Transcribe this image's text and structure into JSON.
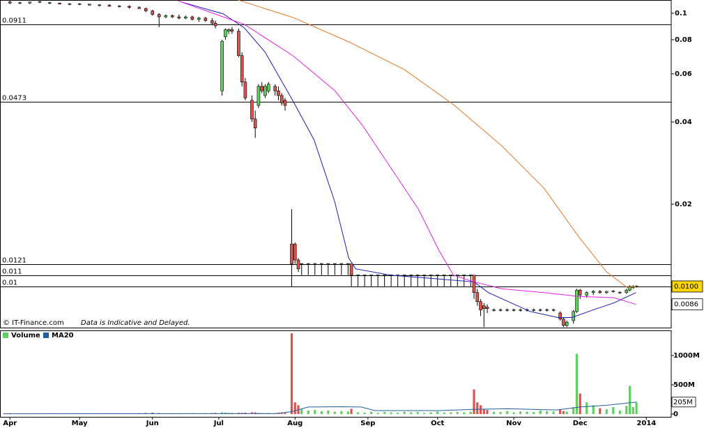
{
  "chart_data": {
    "type": "candlestick",
    "log_scale": true,
    "xlim": [
      -3,
      199.5
    ],
    "xticks": [
      {
        "value": 0,
        "label": "Apr"
      },
      {
        "value": 21,
        "label": "May"
      },
      {
        "value": 43,
        "label": "Jun"
      },
      {
        "value": 63,
        "label": "Jul"
      },
      {
        "value": 86,
        "label": "Aug"
      },
      {
        "value": 108,
        "label": "Sep"
      },
      {
        "value": 129,
        "label": "Oct"
      },
      {
        "value": 152,
        "label": "Nov"
      },
      {
        "value": 172,
        "label": "Dec"
      },
      {
        "value": 192,
        "label": "2014"
      }
    ],
    "ylim": [
      0.00707,
      0.1118
    ],
    "yticks": [
      0.1,
      0.08,
      0.06,
      0.04,
      0.02
    ],
    "levels": [
      0.0911,
      0.0473,
      0.0121,
      0.011,
      0.01
    ],
    "up_color": "#5fcf5f",
    "down_color": "#d9534f",
    "candles": {
      "x": [
        0,
        3,
        6,
        9,
        12,
        15,
        18,
        21,
        24,
        27,
        30,
        33,
        36,
        39,
        41,
        43,
        45,
        47,
        49,
        51,
        53,
        55,
        57,
        59,
        61,
        62,
        64,
        65,
        66,
        67,
        69,
        70,
        71,
        73,
        74,
        75,
        76,
        77,
        78,
        80,
        81,
        82,
        83,
        85,
        86,
        87,
        88,
        90,
        92,
        94,
        96,
        98,
        100,
        102,
        103,
        105,
        107,
        109,
        111,
        113,
        115,
        117,
        119,
        121,
        123,
        125,
        127,
        129,
        131,
        133,
        135,
        137,
        139,
        140,
        141,
        142,
        143,
        144,
        146,
        148,
        150,
        152,
        154,
        156,
        158,
        160,
        162,
        164,
        166,
        167,
        168,
        170,
        171,
        172,
        174,
        176,
        178,
        180,
        182,
        184,
        186,
        187,
        188,
        189
      ],
      "open": [
        0.11,
        0.109,
        0.109,
        0.11,
        0.109,
        0.109,
        0.108,
        0.108,
        0.108,
        0.107,
        0.107,
        0.106,
        0.106,
        0.105,
        0.104,
        0.102,
        0.099,
        0.097,
        0.098,
        0.097,
        0.096,
        0.097,
        0.095,
        0.096,
        0.094,
        0.092,
        0.052,
        0.082,
        0.086,
        0.087,
        0.086,
        0.07,
        0.056,
        0.048,
        0.041,
        0.046,
        0.054,
        0.05,
        0.052,
        0.054,
        0.052,
        0.05,
        0.048,
        0.0143,
        0.0143,
        0.0125,
        0.0121,
        0.0121,
        0.0121,
        0.0121,
        0.0121,
        0.0121,
        0.0121,
        0.0121,
        0.0121,
        0.011,
        0.011,
        0.011,
        0.011,
        0.011,
        0.011,
        0.011,
        0.011,
        0.011,
        0.011,
        0.011,
        0.011,
        0.011,
        0.011,
        0.011,
        0.011,
        0.011,
        0.011,
        0.011,
        0.0095,
        0.0088,
        0.0085,
        0.0084,
        0.0082,
        0.0082,
        0.0082,
        0.0082,
        0.0082,
        0.0082,
        0.0082,
        0.0082,
        0.0082,
        0.0082,
        0.008,
        0.0076,
        0.0072,
        0.0075,
        0.0081,
        0.0097,
        0.0093,
        0.0095,
        0.0096,
        0.0095,
        0.0096,
        0.0095,
        0.0095,
        0.0097,
        0.0099,
        0.01
      ],
      "high": [
        0.111,
        0.11,
        0.11,
        0.111,
        0.11,
        0.109,
        0.109,
        0.109,
        0.108,
        0.108,
        0.108,
        0.107,
        0.107,
        0.106,
        0.105,
        0.103,
        0.1,
        0.099,
        0.099,
        0.099,
        0.098,
        0.098,
        0.097,
        0.097,
        0.096,
        0.094,
        0.08,
        0.088,
        0.088,
        0.089,
        0.088,
        0.072,
        0.058,
        0.05,
        0.044,
        0.055,
        0.056,
        0.055,
        0.056,
        0.055,
        0.054,
        0.051,
        0.049,
        0.0192,
        0.0145,
        0.0127,
        0.0121,
        0.0121,
        0.0121,
        0.0121,
        0.0121,
        0.0121,
        0.0121,
        0.0121,
        0.0121,
        0.011,
        0.011,
        0.011,
        0.011,
        0.011,
        0.011,
        0.011,
        0.011,
        0.011,
        0.011,
        0.011,
        0.011,
        0.011,
        0.011,
        0.011,
        0.011,
        0.011,
        0.011,
        0.011,
        0.0098,
        0.009,
        0.0087,
        0.0086,
        0.0083,
        0.0083,
        0.0083,
        0.0083,
        0.0083,
        0.0083,
        0.0083,
        0.0083,
        0.0083,
        0.0083,
        0.0081,
        0.0077,
        0.0075,
        0.0082,
        0.0098,
        0.0098,
        0.0096,
        0.0097,
        0.0097,
        0.0096,
        0.0097,
        0.0096,
        0.0098,
        0.0101,
        0.0101,
        0.0101
      ],
      "low": [
        0.108,
        0.108,
        0.108,
        0.109,
        0.108,
        0.108,
        0.107,
        0.107,
        0.107,
        0.106,
        0.106,
        0.105,
        0.104,
        0.104,
        0.101,
        0.098,
        0.089,
        0.096,
        0.096,
        0.095,
        0.095,
        0.094,
        0.093,
        0.093,
        0.091,
        0.088,
        0.05,
        0.08,
        0.084,
        0.084,
        0.069,
        0.054,
        0.048,
        0.04,
        0.035,
        0.045,
        0.051,
        0.049,
        0.051,
        0.05,
        0.048,
        0.046,
        0.044,
        0.01,
        0.0121,
        0.0113,
        0.011,
        0.011,
        0.011,
        0.011,
        0.011,
        0.011,
        0.011,
        0.011,
        0.01,
        0.01,
        0.01,
        0.01,
        0.01,
        0.01,
        0.01,
        0.01,
        0.01,
        0.01,
        0.01,
        0.01,
        0.01,
        0.01,
        0.01,
        0.01,
        0.01,
        0.01,
        0.01,
        0.009,
        0.0085,
        0.0078,
        0.0071,
        0.008,
        0.0081,
        0.0081,
        0.0081,
        0.0081,
        0.0081,
        0.0081,
        0.0081,
        0.0081,
        0.0081,
        0.0081,
        0.0075,
        0.0071,
        0.0071,
        0.0073,
        0.008,
        0.009,
        0.0091,
        0.0093,
        0.0094,
        0.0094,
        0.0095,
        0.0094,
        0.0094,
        0.0096,
        0.0098,
        0.0099
      ],
      "close": [
        0.109,
        0.109,
        0.11,
        0.11,
        0.109,
        0.108,
        0.108,
        0.108,
        0.107,
        0.107,
        0.106,
        0.106,
        0.105,
        0.104,
        0.102,
        0.099,
        0.097,
        0.098,
        0.097,
        0.096,
        0.097,
        0.095,
        0.096,
        0.094,
        0.092,
        0.09,
        0.079,
        0.087,
        0.087,
        0.086,
        0.07,
        0.056,
        0.049,
        0.041,
        0.038,
        0.054,
        0.052,
        0.054,
        0.055,
        0.052,
        0.05,
        0.047,
        0.046,
        0.0121,
        0.0125,
        0.0116,
        0.0121,
        0.0121,
        0.0121,
        0.0121,
        0.0121,
        0.0121,
        0.0121,
        0.0121,
        0.011,
        0.011,
        0.011,
        0.011,
        0.011,
        0.011,
        0.011,
        0.011,
        0.011,
        0.011,
        0.011,
        0.011,
        0.011,
        0.011,
        0.011,
        0.011,
        0.011,
        0.011,
        0.011,
        0.0095,
        0.0088,
        0.0082,
        0.0083,
        0.0083,
        0.0082,
        0.0082,
        0.0082,
        0.0082,
        0.0082,
        0.0082,
        0.0082,
        0.0082,
        0.0082,
        0.0082,
        0.0076,
        0.0072,
        0.0074,
        0.0081,
        0.0097,
        0.0093,
        0.0095,
        0.0096,
        0.0095,
        0.0096,
        0.0096,
        0.0095,
        0.0097,
        0.01,
        0.01,
        0.01
      ],
      "volume": [
        15,
        10,
        8,
        12,
        6,
        5,
        10,
        8,
        6,
        10,
        7,
        9,
        12,
        15,
        20,
        25,
        18,
        10,
        12,
        9,
        11,
        14,
        10,
        13,
        16,
        20,
        30,
        25,
        20,
        18,
        22,
        20,
        25,
        30,
        28,
        20,
        15,
        12,
        18,
        14,
        12,
        16,
        20,
        1380,
        200,
        150,
        80,
        60,
        70,
        50,
        60,
        40,
        50,
        45,
        90,
        30,
        25,
        40,
        20,
        35,
        30,
        25,
        40,
        30,
        35,
        20,
        30,
        45,
        25,
        30,
        35,
        30,
        40,
        420,
        200,
        150,
        80,
        70,
        40,
        35,
        50,
        30,
        45,
        40,
        35,
        60,
        50,
        45,
        80,
        50,
        40,
        120,
        1030,
        350,
        200,
        150,
        100,
        80,
        120,
        60,
        140,
        480,
        120,
        200
      ]
    },
    "ma_lines": [
      {
        "color": "#1c1cb0",
        "x": [
          51.7,
          64.4,
          70.7,
          77,
          85.4,
          91.7,
          98,
          102.2,
          104.3,
          114.8,
          127.4,
          140,
          144.3,
          156.9,
          165.3,
          169.5,
          175.8,
          182.1,
          188.9
        ],
        "values": [
          0.11,
          0.0994,
          0.0884,
          0.072,
          0.0477,
          0.0345,
          0.0204,
          0.0127,
          0.0116,
          0.011,
          0.0107,
          0.0104,
          0.0095,
          0.0081,
          0.0077,
          0.0077,
          0.0082,
          0.0087,
          0.0095
        ]
      },
      {
        "color": "#e020e0",
        "x": [
          50.7,
          70.7,
          85.4,
          98,
          106.4,
          114.8,
          123.2,
          129.5,
          133.8,
          140,
          148.5,
          161.1,
          171.6,
          182.1,
          188.9
        ],
        "values": [
          0.111,
          0.091,
          0.0699,
          0.0521,
          0.0388,
          0.0273,
          0.0192,
          0.0135,
          0.011,
          0.0104,
          0.0098,
          0.0095,
          0.0092,
          0.0091,
          0.0086
        ]
      },
      {
        "color": "#e87722",
        "x": [
          68.6,
          85.4,
          102.2,
          119,
          133.8,
          148.5,
          161.1,
          171.6,
          180,
          186.3,
          188.9
        ],
        "values": [
          0.112,
          0.0965,
          0.0786,
          0.0622,
          0.0463,
          0.0326,
          0.0229,
          0.0152,
          0.0113,
          0.0099,
          0.01
        ]
      }
    ],
    "price_labels": [
      {
        "value": 0.01,
        "label": "0.0100",
        "color": "#000000",
        "background": "#ffd700"
      },
      {
        "value": 0.0086,
        "label": "0.0086",
        "color": "#e020e0",
        "background": "#ffffff"
      }
    ],
    "credit": "© IT-Finance.com",
    "disclaimer": "Data is Indicative and Delayed.",
    "volume": {
      "legend": "Volume",
      "ylim": [
        0,
        1417
      ],
      "yticks": [
        0,
        {
          "value": 500,
          "label": "500M"
        },
        {
          "value": 1000,
          "label": "1000M"
        }
      ],
      "ma": {
        "name": "MA20",
        "color": "#1f5fa0",
        "x": [
          -2,
          80,
          85,
          90,
          100,
          106,
          110,
          130,
          140,
          150,
          165,
          172,
          180,
          189
        ],
        "values": [
          5,
          8,
          40,
          120,
          125,
          120,
          60,
          60,
          80,
          90,
          70,
          120,
          150,
          205
        ]
      },
      "ma_label": {
        "value": 205,
        "label": "205M",
        "color": "#2e9e2e"
      }
    }
  }
}
